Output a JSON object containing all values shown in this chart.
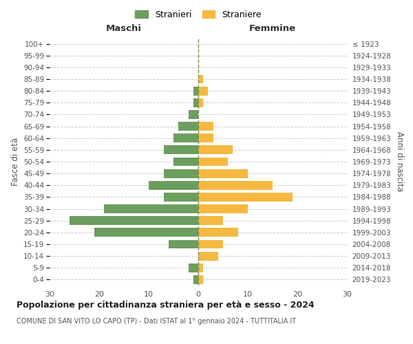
{
  "age_groups": [
    "0-4",
    "5-9",
    "10-14",
    "15-19",
    "20-24",
    "25-29",
    "30-34",
    "35-39",
    "40-44",
    "45-49",
    "50-54",
    "55-59",
    "60-64",
    "65-69",
    "70-74",
    "75-79",
    "80-84",
    "85-89",
    "90-94",
    "95-99",
    "100+"
  ],
  "birth_years": [
    "2019-2023",
    "2014-2018",
    "2009-2013",
    "2004-2008",
    "1999-2003",
    "1994-1998",
    "1989-1993",
    "1984-1988",
    "1979-1983",
    "1974-1978",
    "1969-1973",
    "1964-1968",
    "1959-1963",
    "1954-1958",
    "1949-1953",
    "1944-1948",
    "1939-1943",
    "1934-1938",
    "1929-1933",
    "1924-1928",
    "≤ 1923"
  ],
  "maschi": [
    1,
    2,
    0,
    6,
    21,
    26,
    19,
    7,
    10,
    7,
    5,
    7,
    5,
    4,
    2,
    1,
    1,
    0,
    0,
    0,
    0
  ],
  "femmine": [
    1,
    1,
    4,
    5,
    8,
    5,
    10,
    19,
    15,
    10,
    6,
    7,
    3,
    3,
    0,
    1,
    2,
    1,
    0,
    0,
    0
  ],
  "maschi_color": "#6b9e5e",
  "femmine_color": "#f5b942",
  "center_line_color": "#888855",
  "grid_color": "#cccccc",
  "title": "Popolazione per cittadinanza straniera per età e sesso - 2024",
  "subtitle": "COMUNE DI SAN VITO LO CAPO (TP) - Dati ISTAT al 1° gennaio 2024 - TUTTITALIA.IT",
  "legend_maschi": "Stranieri",
  "legend_femmine": "Straniere",
  "xlabel_left": "Maschi",
  "xlabel_right": "Femmine",
  "ylabel_left": "Fasce di età",
  "ylabel_right": "Anni di nascita",
  "xlim": 30,
  "background_color": "#ffffff"
}
